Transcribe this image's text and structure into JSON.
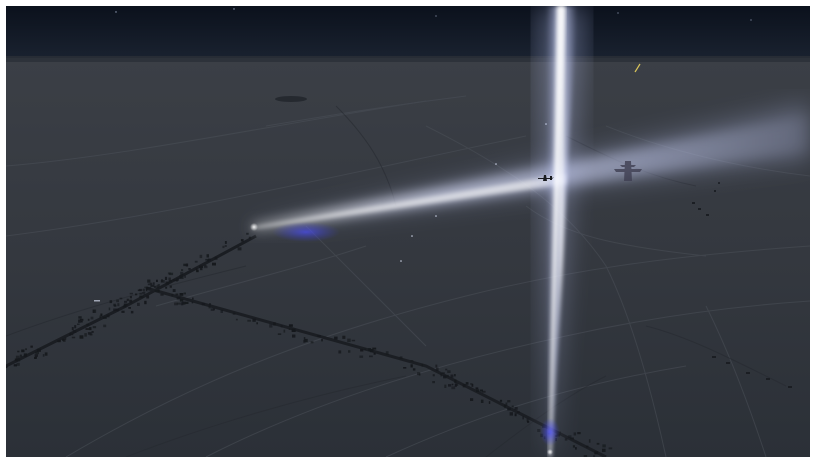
{
  "scene": {
    "description_free": true,
    "colors": {
      "sky_top": "#0b111c",
      "sky_horizon": "#1a2230",
      "ground_far": "#3a3e45",
      "ground_near": "#2c3138",
      "snow_highlight": "#4d525a",
      "beam_core": "#ffffff",
      "beam_glow": "#b9c3f2",
      "beam_blue": "#3b3fd8",
      "village_dark": "#16191d"
    },
    "icons": {
      "aircraft": "airplane-silhouette-icon",
      "aircraft_shadow": "aircraft-shadow-icon"
    }
  }
}
